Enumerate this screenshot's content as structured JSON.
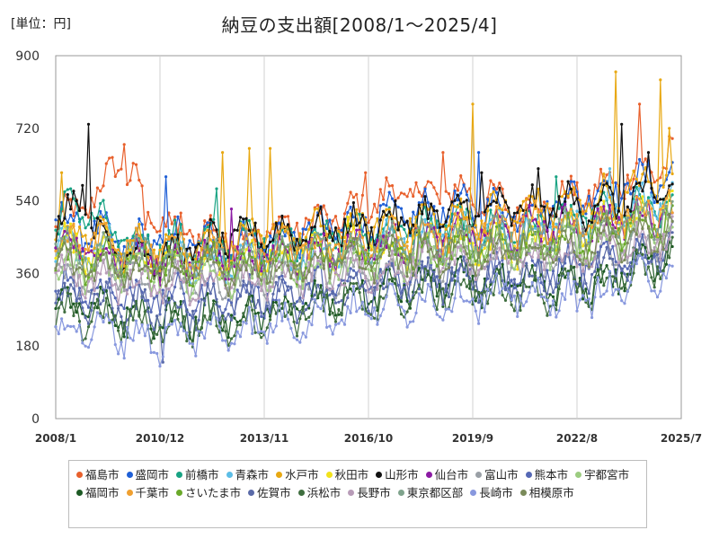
{
  "unit_label": "[単位：円]",
  "chart_data": {
    "type": "line",
    "title": "納豆の支出額[2008/1～2025/4]",
    "x_ticks": [
      "2008/1",
      "2010/12",
      "2013/11",
      "2016/10",
      "2019/9",
      "2022/8",
      "2025/7"
    ],
    "x_range": [
      "2008/1",
      "2025/7"
    ],
    "y_ticks": [
      0,
      180,
      360,
      540,
      720,
      900
    ],
    "ylim": [
      0,
      900
    ],
    "grid": "vertical",
    "legend_position": "bottom",
    "series": [
      {
        "name": "福島市",
        "color": "#e8602c",
        "anchors": [
          [
            2008.0,
            480
          ],
          [
            2009.3,
            560
          ],
          [
            2009.7,
            650
          ],
          [
            2011.0,
            480
          ],
          [
            2013.0,
            450
          ],
          [
            2016.0,
            500
          ],
          [
            2017.5,
            560
          ],
          [
            2019.5,
            560
          ],
          [
            2021.0,
            520
          ],
          [
            2023.0,
            560
          ],
          [
            2024.0,
            600
          ],
          [
            2025.3,
            640
          ]
        ],
        "spikes": [
          [
            2009.9,
            680
          ],
          [
            2010.5,
            470
          ],
          [
            2011.4,
            460
          ],
          [
            2016.7,
            610
          ],
          [
            2018.8,
            660
          ],
          [
            2024.3,
            780
          ],
          [
            2025.2,
            700
          ]
        ]
      },
      {
        "name": "盛岡市",
        "color": "#1f5fd6",
        "anchors": [
          [
            2008.0,
            500
          ],
          [
            2010.0,
            430
          ],
          [
            2011.0,
            450
          ],
          [
            2013.0,
            430
          ],
          [
            2016.0,
            480
          ],
          [
            2019.0,
            520
          ],
          [
            2021.0,
            520
          ],
          [
            2023.0,
            560
          ],
          [
            2025.3,
            600
          ]
        ],
        "spikes": [
          [
            2011.1,
            600
          ],
          [
            2019.8,
            660
          ],
          [
            2024.6,
            640
          ]
        ]
      },
      {
        "name": "前橋市",
        "color": "#18a383",
        "anchors": [
          [
            2008.0,
            480
          ],
          [
            2008.5,
            540
          ],
          [
            2010.0,
            430
          ],
          [
            2013.0,
            440
          ],
          [
            2016.0,
            460
          ],
          [
            2019.0,
            480
          ],
          [
            2021.0,
            470
          ],
          [
            2023.0,
            500
          ],
          [
            2025.3,
            530
          ]
        ],
        "spikes": [
          [
            2008.4,
            570
          ],
          [
            2012.5,
            570
          ],
          [
            2022.0,
            600
          ]
        ]
      },
      {
        "name": "青森市",
        "color": "#5cbde6",
        "anchors": [
          [
            2008.0,
            430
          ],
          [
            2011.0,
            400
          ],
          [
            2013.0,
            380
          ],
          [
            2016.0,
            420
          ],
          [
            2019.0,
            460
          ],
          [
            2021.0,
            470
          ],
          [
            2023.0,
            500
          ],
          [
            2025.3,
            550
          ]
        ],
        "spikes": [
          [
            2009.5,
            480
          ],
          [
            2023.5,
            620
          ]
        ]
      },
      {
        "name": "水戸市",
        "color": "#e8a812",
        "anchors": [
          [
            2008.0,
            480
          ],
          [
            2010.0,
            420
          ],
          [
            2013.0,
            440
          ],
          [
            2016.0,
            470
          ],
          [
            2019.0,
            500
          ],
          [
            2021.0,
            520
          ],
          [
            2023.0,
            540
          ],
          [
            2025.3,
            600
          ]
        ],
        "spikes": [
          [
            2008.2,
            610
          ],
          [
            2012.7,
            660
          ],
          [
            2013.4,
            670
          ],
          [
            2014.0,
            670
          ],
          [
            2019.7,
            780
          ],
          [
            2023.7,
            860
          ],
          [
            2024.9,
            840
          ],
          [
            2025.2,
            720
          ]
        ]
      },
      {
        "name": "秋田市",
        "color": "#f2e21a",
        "anchors": [
          [
            2008.0,
            440
          ],
          [
            2011.0,
            380
          ],
          [
            2013.0,
            390
          ],
          [
            2016.0,
            420
          ],
          [
            2019.0,
            440
          ],
          [
            2021.0,
            430
          ],
          [
            2023.0,
            480
          ],
          [
            2025.3,
            520
          ]
        ],
        "spikes": [
          [
            2016.2,
            500
          ]
        ]
      },
      {
        "name": "山形市",
        "color": "#111111",
        "anchors": [
          [
            2008.0,
            470
          ],
          [
            2008.8,
            580
          ],
          [
            2009.2,
            440
          ],
          [
            2011.0,
            400
          ],
          [
            2013.0,
            450
          ],
          [
            2016.0,
            470
          ],
          [
            2019.0,
            510
          ],
          [
            2021.0,
            520
          ],
          [
            2023.0,
            530
          ],
          [
            2025.3,
            560
          ]
        ],
        "spikes": [
          [
            2008.9,
            730
          ],
          [
            2019.9,
            610
          ],
          [
            2021.5,
            620
          ],
          [
            2023.8,
            730
          ],
          [
            2024.6,
            660
          ]
        ]
      },
      {
        "name": "仙台市",
        "color": "#8b1aa3",
        "anchors": [
          [
            2008.0,
            430
          ],
          [
            2011.0,
            390
          ],
          [
            2013.0,
            400
          ],
          [
            2016.0,
            420
          ],
          [
            2019.0,
            450
          ],
          [
            2021.0,
            470
          ],
          [
            2023.0,
            480
          ],
          [
            2025.3,
            520
          ]
        ],
        "spikes": [
          [
            2012.9,
            520
          ]
        ]
      },
      {
        "name": "富山市",
        "color": "#9aa0a6",
        "anchors": [
          [
            2008.0,
            360
          ],
          [
            2011.0,
            330
          ],
          [
            2013.0,
            340
          ],
          [
            2016.0,
            360
          ],
          [
            2019.0,
            380
          ],
          [
            2021.0,
            390
          ],
          [
            2023.0,
            400
          ],
          [
            2025.3,
            440
          ]
        ],
        "spikes": []
      },
      {
        "name": "熊本市",
        "color": "#5568b5",
        "anchors": [
          [
            2008.0,
            330
          ],
          [
            2011.0,
            300
          ],
          [
            2013.0,
            300
          ],
          [
            2016.0,
            330
          ],
          [
            2019.0,
            370
          ],
          [
            2021.0,
            360
          ],
          [
            2023.0,
            380
          ],
          [
            2025.3,
            430
          ]
        ],
        "spikes": []
      },
      {
        "name": "宇都宮市",
        "color": "#9ccc80",
        "anchors": [
          [
            2008.0,
            380
          ],
          [
            2011.0,
            360
          ],
          [
            2013.0,
            360
          ],
          [
            2016.0,
            380
          ],
          [
            2019.0,
            410
          ],
          [
            2021.0,
            420
          ],
          [
            2023.0,
            440
          ],
          [
            2025.3,
            480
          ]
        ],
        "spikes": []
      },
      {
        "name": "福岡市",
        "color": "#1d5a24",
        "anchors": [
          [
            2008.0,
            280
          ],
          [
            2011.0,
            250
          ],
          [
            2013.0,
            250
          ],
          [
            2016.0,
            300
          ],
          [
            2019.0,
            340
          ],
          [
            2021.0,
            330
          ],
          [
            2023.0,
            330
          ],
          [
            2025.3,
            420
          ]
        ],
        "spikes": []
      },
      {
        "name": "千葉市",
        "color": "#f0a030",
        "anchors": [
          [
            2008.0,
            440
          ],
          [
            2011.0,
            420
          ],
          [
            2013.0,
            410
          ],
          [
            2016.0,
            430
          ],
          [
            2019.0,
            460
          ],
          [
            2021.0,
            480
          ],
          [
            2023.0,
            490
          ],
          [
            2025.3,
            520
          ]
        ],
        "spikes": []
      },
      {
        "name": "さいたま市",
        "color": "#6aa92a",
        "anchors": [
          [
            2008.0,
            400
          ],
          [
            2011.0,
            380
          ],
          [
            2013.0,
            380
          ],
          [
            2016.0,
            400
          ],
          [
            2019.0,
            430
          ],
          [
            2021.0,
            440
          ],
          [
            2023.0,
            450
          ],
          [
            2025.3,
            490
          ]
        ],
        "spikes": []
      },
      {
        "name": "佐賀市",
        "color": "#5a6aa8",
        "anchors": [
          [
            2008.0,
            300
          ],
          [
            2011.0,
            270
          ],
          [
            2013.0,
            280
          ],
          [
            2016.0,
            310
          ],
          [
            2019.0,
            350
          ],
          [
            2021.0,
            350
          ],
          [
            2023.0,
            360
          ],
          [
            2025.3,
            420
          ]
        ],
        "spikes": [
          [
            2011.0,
            140
          ]
        ]
      },
      {
        "name": "浜松市",
        "color": "#3f6e3f",
        "anchors": [
          [
            2008.0,
            260
          ],
          [
            2011.0,
            230
          ],
          [
            2013.0,
            240
          ],
          [
            2016.0,
            280
          ],
          [
            2019.0,
            320
          ],
          [
            2021.0,
            310
          ],
          [
            2023.0,
            320
          ],
          [
            2025.3,
            400
          ]
        ],
        "spikes": []
      },
      {
        "name": "長野市",
        "color": "#b89cb8",
        "anchors": [
          [
            2008.0,
            360
          ],
          [
            2011.0,
            330
          ],
          [
            2013.0,
            340
          ],
          [
            2016.0,
            360
          ],
          [
            2019.0,
            390
          ],
          [
            2021.0,
            400
          ],
          [
            2023.0,
            410
          ],
          [
            2025.3,
            450
          ]
        ],
        "spikes": []
      },
      {
        "name": "東京都区部",
        "color": "#7fa38c",
        "anchors": [
          [
            2008.0,
            420
          ],
          [
            2011.0,
            400
          ],
          [
            2013.0,
            400
          ],
          [
            2016.0,
            420
          ],
          [
            2019.0,
            440
          ],
          [
            2021.0,
            460
          ],
          [
            2023.0,
            470
          ],
          [
            2025.3,
            500
          ]
        ],
        "spikes": []
      },
      {
        "name": "長崎市",
        "color": "#8898de",
        "anchors": [
          [
            2008.0,
            230
          ],
          [
            2011.0,
            200
          ],
          [
            2013.0,
            220
          ],
          [
            2016.0,
            260
          ],
          [
            2019.0,
            300
          ],
          [
            2021.0,
            300
          ],
          [
            2023.0,
            300
          ],
          [
            2025.3,
            380
          ]
        ],
        "spikes": [
          [
            2010.9,
            130
          ]
        ]
      },
      {
        "name": "相模原市",
        "color": "#7a8a5a",
        "anchors": [
          [
            2008.0,
            380
          ],
          [
            2011.0,
            360
          ],
          [
            2013.0,
            370
          ],
          [
            2016.0,
            390
          ],
          [
            2019.0,
            410
          ],
          [
            2021.0,
            420
          ],
          [
            2023.0,
            430
          ],
          [
            2025.3,
            470
          ]
        ],
        "spikes": []
      }
    ]
  }
}
